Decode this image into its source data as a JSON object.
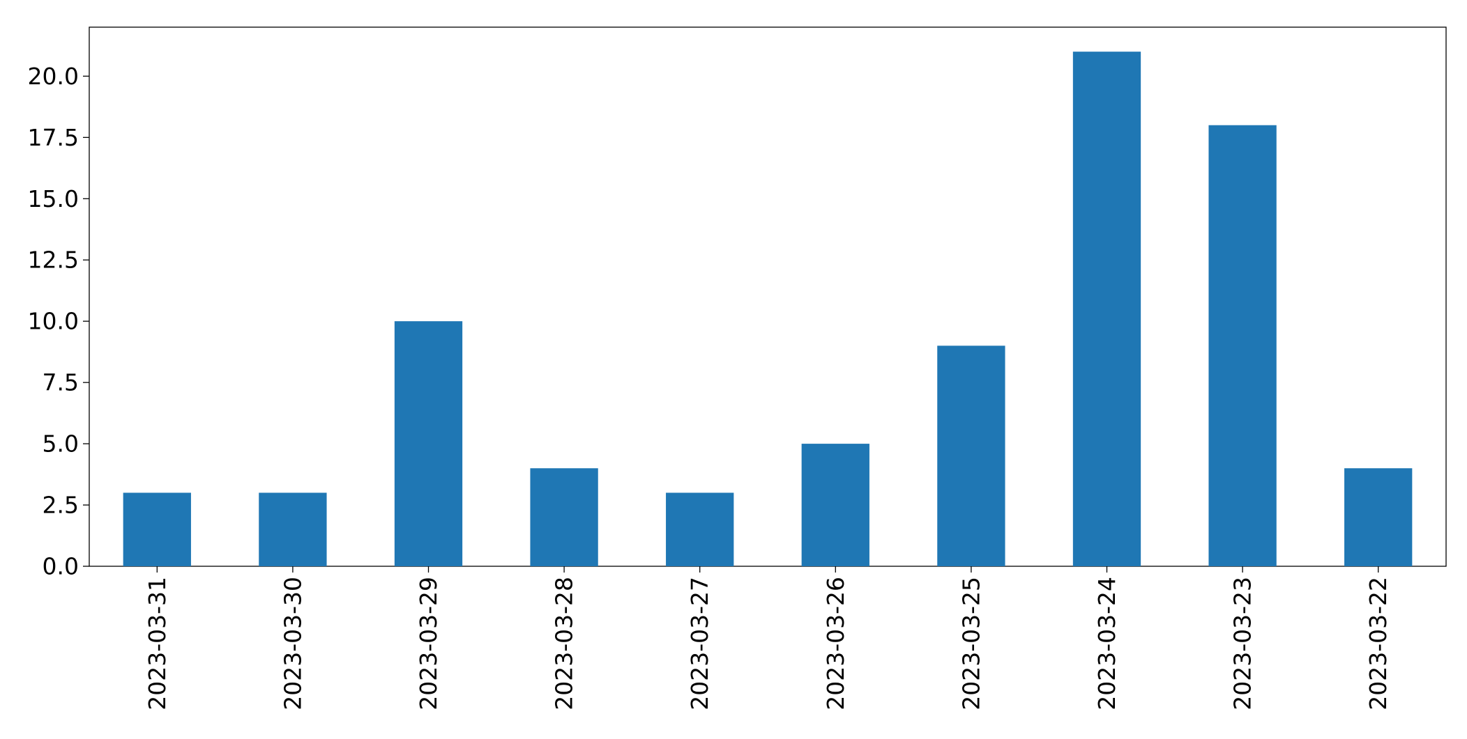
{
  "chart_data": {
    "type": "bar",
    "title": "",
    "xlabel": "",
    "ylabel": "",
    "categories": [
      "2023-03-31",
      "2023-03-30",
      "2023-03-29",
      "2023-03-28",
      "2023-03-27",
      "2023-03-26",
      "2023-03-25",
      "2023-03-24",
      "2023-03-23",
      "2023-03-22"
    ],
    "values": [
      3,
      3,
      10,
      4,
      3,
      5,
      9,
      21,
      18,
      4
    ],
    "ylim": [
      0,
      22
    ],
    "yticks": [
      0,
      2.5,
      5,
      7.5,
      10,
      12.5,
      15,
      17.5,
      20
    ],
    "ytick_labels": [
      "0.0",
      "2.5",
      "5.0",
      "7.5",
      "10.0",
      "12.5",
      "15.0",
      "17.5",
      "20.0"
    ],
    "bar_color": "#1f77b4",
    "grid": false,
    "legend": "none"
  }
}
